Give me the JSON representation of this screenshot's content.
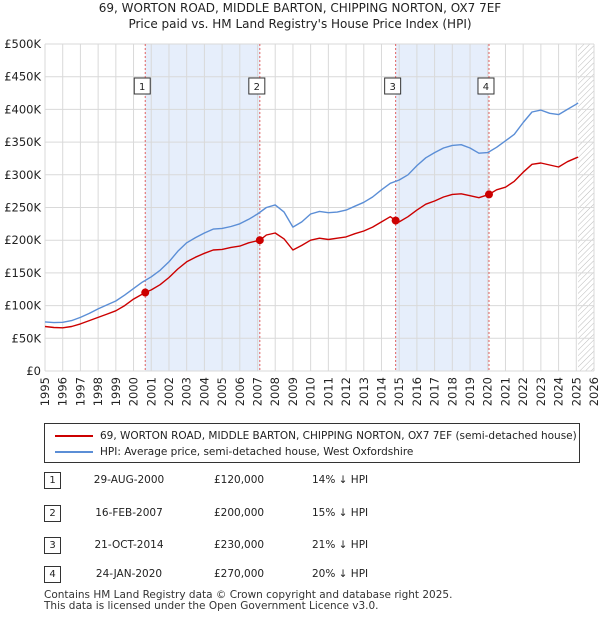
{
  "title_line1": "69, WORTON ROAD, MIDDLE BARTON, CHIPPING NORTON, OX7 7EF",
  "title_line2": "Price paid vs. HM Land Registry's House Price Index (HPI)",
  "chart_data": {
    "type": "line",
    "title": "69, WORTON ROAD, MIDDLE BARTON, CHIPPING NORTON, OX7 7EF — Price paid vs. HM Land Registry's House Price Index (HPI)",
    "xlim": [
      1995,
      2026
    ],
    "ylim": [
      0,
      500000
    ],
    "y_ticks": [
      0,
      50000,
      100000,
      150000,
      200000,
      250000,
      300000,
      350000,
      400000,
      450000,
      500000
    ],
    "y_tick_labels": [
      "£0",
      "£50K",
      "£100K",
      "£150K",
      "£200K",
      "£250K",
      "£300K",
      "£350K",
      "£400K",
      "£450K",
      "£500K"
    ],
    "x_ticks": [
      1995,
      1996,
      1997,
      1998,
      1999,
      2000,
      2001,
      2002,
      2003,
      2004,
      2005,
      2006,
      2007,
      2008,
      2009,
      2010,
      2011,
      2012,
      2013,
      2014,
      2015,
      2016,
      2017,
      2018,
      2019,
      2020,
      2021,
      2022,
      2023,
      2024,
      2025,
      2026
    ],
    "x_tick_labels": [
      "1995",
      "1996",
      "1997",
      "1998",
      "1999",
      "2000",
      "2001",
      "2002",
      "2003",
      "2004",
      "2005",
      "2006",
      "2007",
      "2008",
      "2009",
      "2010",
      "2011",
      "2012",
      "2013",
      "2014",
      "2015",
      "2016",
      "2017",
      "2018",
      "2019",
      "2020",
      "2021",
      "2022",
      "2023",
      "2024",
      "2025",
      "2026"
    ],
    "forecast_start": 2025.1,
    "series": [
      {
        "name": "69, WORTON ROAD, MIDDLE BARTON, CHIPPING NORTON, OX7 7EF (semi-detached house)",
        "color": "#cc0000",
        "points": [
          [
            1995.0,
            68000
          ],
          [
            1995.5,
            66500
          ],
          [
            1996.0,
            66000
          ],
          [
            1996.5,
            68000
          ],
          [
            1997.0,
            72000
          ],
          [
            1997.5,
            77000
          ],
          [
            1998.0,
            82000
          ],
          [
            1998.5,
            87000
          ],
          [
            1999.0,
            92000
          ],
          [
            1999.5,
            100000
          ],
          [
            2000.0,
            110000
          ],
          [
            2000.66,
            120000
          ],
          [
            2001.0,
            124000
          ],
          [
            2001.5,
            132000
          ],
          [
            2002.0,
            143000
          ],
          [
            2002.5,
            156000
          ],
          [
            2003.0,
            167000
          ],
          [
            2003.5,
            174000
          ],
          [
            2004.0,
            180000
          ],
          [
            2004.5,
            185000
          ],
          [
            2005.0,
            186000
          ],
          [
            2005.5,
            189000
          ],
          [
            2006.0,
            191000
          ],
          [
            2006.5,
            196000
          ],
          [
            2007.13,
            200000
          ],
          [
            2007.5,
            208000
          ],
          [
            2008.0,
            211000
          ],
          [
            2008.5,
            202000
          ],
          [
            2009.0,
            185000
          ],
          [
            2009.5,
            192000
          ],
          [
            2010.0,
            200000
          ],
          [
            2010.5,
            203000
          ],
          [
            2011.0,
            201000
          ],
          [
            2011.5,
            203000
          ],
          [
            2012.0,
            205000
          ],
          [
            2012.5,
            210000
          ],
          [
            2013.0,
            214000
          ],
          [
            2013.5,
            220000
          ],
          [
            2014.0,
            228000
          ],
          [
            2014.5,
            236000
          ],
          [
            2014.8,
            230000
          ],
          [
            2015.0,
            228000
          ],
          [
            2015.5,
            236000
          ],
          [
            2016.0,
            246000
          ],
          [
            2016.5,
            255000
          ],
          [
            2017.0,
            260000
          ],
          [
            2017.5,
            266000
          ],
          [
            2018.0,
            270000
          ],
          [
            2018.5,
            271000
          ],
          [
            2019.0,
            268000
          ],
          [
            2019.5,
            265000
          ],
          [
            2020.07,
            270000
          ],
          [
            2020.5,
            277000
          ],
          [
            2021.0,
            281000
          ],
          [
            2021.5,
            290000
          ],
          [
            2022.0,
            304000
          ],
          [
            2022.5,
            316000
          ],
          [
            2023.0,
            318000
          ],
          [
            2023.5,
            315000
          ],
          [
            2024.0,
            312000
          ],
          [
            2024.5,
            320000
          ],
          [
            2025.0,
            326000
          ],
          [
            2025.1,
            327000
          ]
        ]
      },
      {
        "name": "HPI: Average price, semi-detached house, West Oxfordshire",
        "color": "#5b8ed6",
        "points": [
          [
            1995.0,
            75000
          ],
          [
            1995.5,
            74000
          ],
          [
            1996.0,
            74500
          ],
          [
            1996.5,
            77000
          ],
          [
            1997.0,
            82000
          ],
          [
            1997.5,
            88000
          ],
          [
            1998.0,
            95000
          ],
          [
            1998.5,
            101000
          ],
          [
            1999.0,
            107000
          ],
          [
            1999.5,
            116000
          ],
          [
            2000.0,
            126000
          ],
          [
            2000.5,
            136000
          ],
          [
            2001.0,
            144000
          ],
          [
            2001.5,
            154000
          ],
          [
            2002.0,
            167000
          ],
          [
            2002.5,
            183000
          ],
          [
            2003.0,
            196000
          ],
          [
            2003.5,
            204000
          ],
          [
            2004.0,
            211000
          ],
          [
            2004.5,
            217000
          ],
          [
            2005.0,
            218000
          ],
          [
            2005.5,
            221000
          ],
          [
            2006.0,
            225000
          ],
          [
            2006.5,
            232000
          ],
          [
            2007.0,
            240000
          ],
          [
            2007.5,
            250000
          ],
          [
            2008.0,
            254000
          ],
          [
            2008.5,
            243000
          ],
          [
            2009.0,
            220000
          ],
          [
            2009.5,
            228000
          ],
          [
            2010.0,
            240000
          ],
          [
            2010.5,
            244000
          ],
          [
            2011.0,
            242000
          ],
          [
            2011.5,
            243000
          ],
          [
            2012.0,
            246000
          ],
          [
            2012.5,
            252000
          ],
          [
            2013.0,
            258000
          ],
          [
            2013.5,
            266000
          ],
          [
            2014.0,
            277000
          ],
          [
            2014.5,
            287000
          ],
          [
            2015.0,
            292000
          ],
          [
            2015.5,
            300000
          ],
          [
            2016.0,
            314000
          ],
          [
            2016.5,
            326000
          ],
          [
            2017.0,
            334000
          ],
          [
            2017.5,
            341000
          ],
          [
            2018.0,
            345000
          ],
          [
            2018.5,
            346000
          ],
          [
            2019.0,
            341000
          ],
          [
            2019.5,
            333000
          ],
          [
            2020.0,
            334000
          ],
          [
            2020.5,
            342000
          ],
          [
            2021.0,
            352000
          ],
          [
            2021.5,
            362000
          ],
          [
            2022.0,
            380000
          ],
          [
            2022.5,
            396000
          ],
          [
            2023.0,
            399000
          ],
          [
            2023.5,
            394000
          ],
          [
            2024.0,
            392000
          ],
          [
            2024.5,
            400000
          ],
          [
            2025.0,
            408000
          ],
          [
            2025.1,
            410000
          ]
        ]
      }
    ],
    "markers": [
      {
        "label": "1",
        "x": 2000.66,
        "y": 120000
      },
      {
        "label": "2",
        "x": 2007.13,
        "y": 200000
      },
      {
        "label": "3",
        "x": 2014.8,
        "y": 230000
      },
      {
        "label": "4",
        "x": 2020.07,
        "y": 270000
      }
    ],
    "shaded_spans": [
      [
        2000.66,
        2007.13
      ],
      [
        2014.8,
        2020.07
      ]
    ]
  },
  "legend": {
    "property": "69, WORTON ROAD, MIDDLE BARTON, CHIPPING NORTON, OX7 7EF (semi-detached house)",
    "hpi": "HPI: Average price, semi-detached house, West Oxfordshire"
  },
  "transactions": [
    {
      "num": "1",
      "date": "29-AUG-2000",
      "price": "£120,000",
      "hpi": "14% ↓ HPI"
    },
    {
      "num": "2",
      "date": "16-FEB-2007",
      "price": "£200,000",
      "hpi": "15% ↓ HPI"
    },
    {
      "num": "3",
      "date": "21-OCT-2014",
      "price": "£230,000",
      "hpi": "21% ↓ HPI"
    },
    {
      "num": "4",
      "date": "24-JAN-2020",
      "price": "£270,000",
      "hpi": "20% ↓ HPI"
    }
  ],
  "footer_line1": "Contains HM Land Registry data © Crown copyright and database right 2025.",
  "footer_line2": "This data is licensed under the Open Government Licence v3.0.",
  "colors": {
    "property": "#cc0000",
    "hpi": "#5b8ed6",
    "span": "#e6eefb",
    "grid": "#d9d9d9"
  }
}
